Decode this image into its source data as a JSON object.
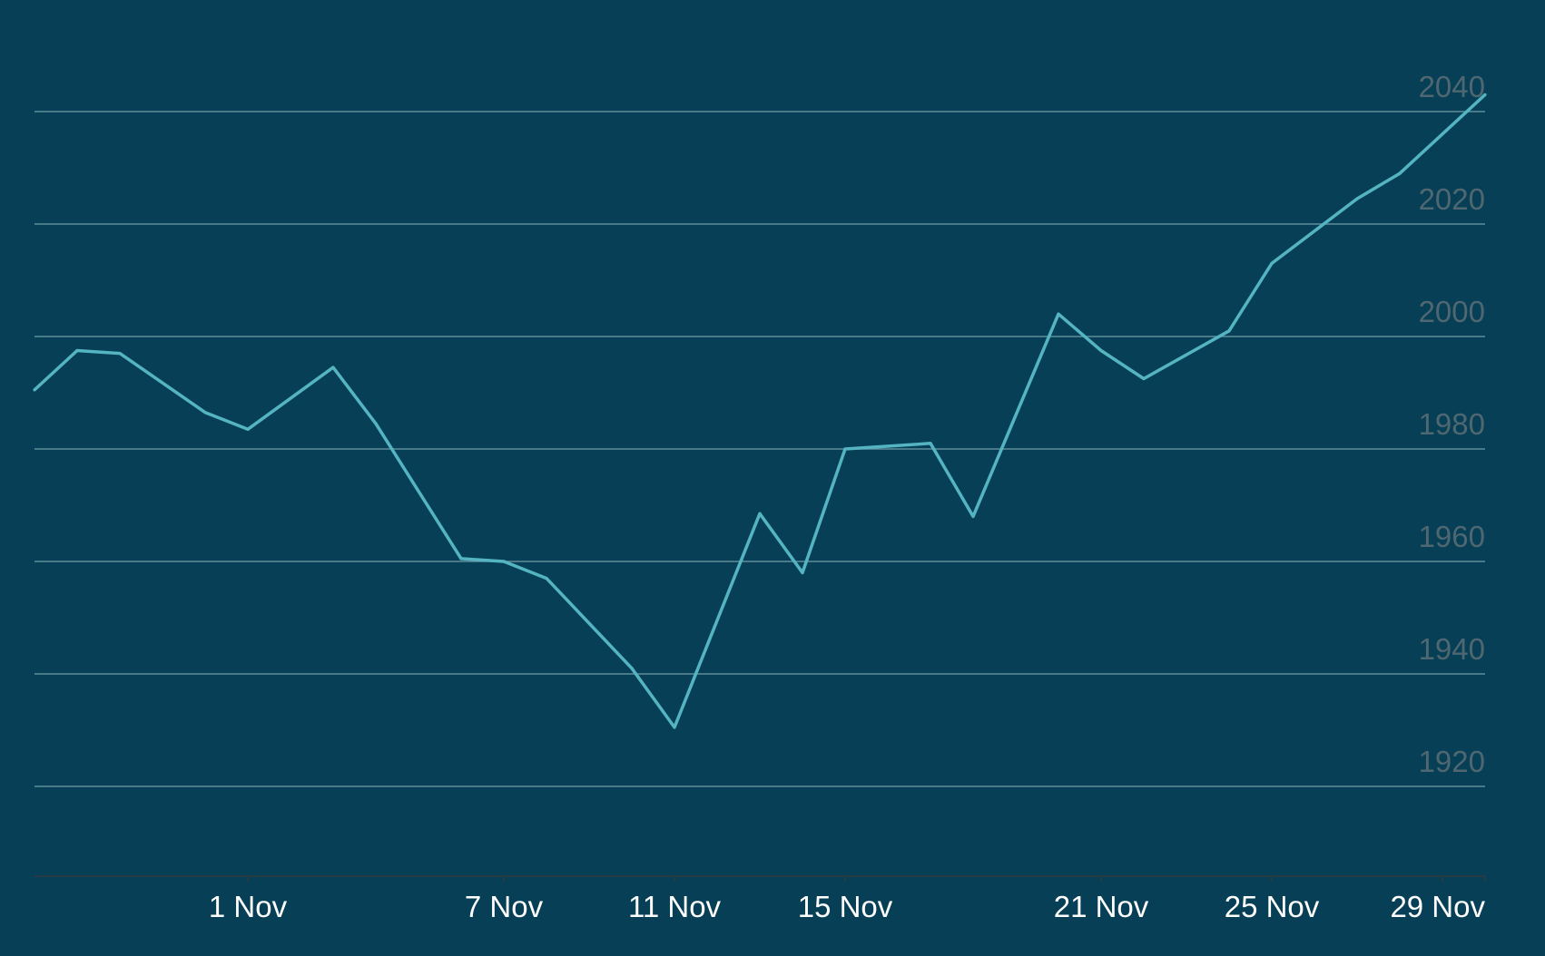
{
  "colors": {
    "background": "#063f56",
    "line": "#55b4c2",
    "gridline": "#5f8d9b",
    "ytick_text": "#4f6770",
    "xtick_text": "#ffffff",
    "axis": "#273b43"
  },
  "chart_data": {
    "type": "line",
    "title": "",
    "xlabel": "",
    "ylabel": "",
    "grid": "horizontal",
    "y_axis_position": "right",
    "ylim": [
      1905,
      2043
    ],
    "xlim": [
      "2020-10-27",
      "2020-11-30"
    ],
    "yticks": [
      1920,
      1940,
      1960,
      1980,
      2000,
      2020,
      2040
    ],
    "xticks": [
      {
        "date": "2020-11-01",
        "label": "1 Nov"
      },
      {
        "date": "2020-11-07",
        "label": "7 Nov"
      },
      {
        "date": "2020-11-11",
        "label": "11 Nov"
      },
      {
        "date": "2020-11-15",
        "label": "15 Nov"
      },
      {
        "date": "2020-11-21",
        "label": "21 Nov"
      },
      {
        "date": "2020-11-25",
        "label": "25 Nov"
      },
      {
        "date": "2020-11-29",
        "label": "29 Nov"
      }
    ],
    "series": [
      {
        "x": [
          "2020-10-27",
          "2020-10-28",
          "2020-10-29",
          "2020-10-31",
          "2020-11-01",
          "2020-11-03",
          "2020-11-04",
          "2020-11-06",
          "2020-11-07",
          "2020-11-08",
          "2020-11-10",
          "2020-11-11",
          "2020-11-13",
          "2020-11-14",
          "2020-11-15",
          "2020-11-17",
          "2020-11-18",
          "2020-11-20",
          "2020-11-21",
          "2020-11-22",
          "2020-11-24",
          "2020-11-25",
          "2020-11-27",
          "2020-11-28",
          "2020-11-30"
        ],
        "values": [
          1990.5,
          1997.5,
          1997.0,
          1986.5,
          1983.5,
          1994.5,
          1984.5,
          1960.5,
          1960.0,
          1957.0,
          1941.0,
          1930.5,
          1968.5,
          1958.0,
          1980.0,
          1981.0,
          1968.0,
          2004.0,
          1997.5,
          1992.5,
          2001.0,
          2013.0,
          2024.5,
          2029.0,
          2043.0
        ]
      }
    ]
  }
}
